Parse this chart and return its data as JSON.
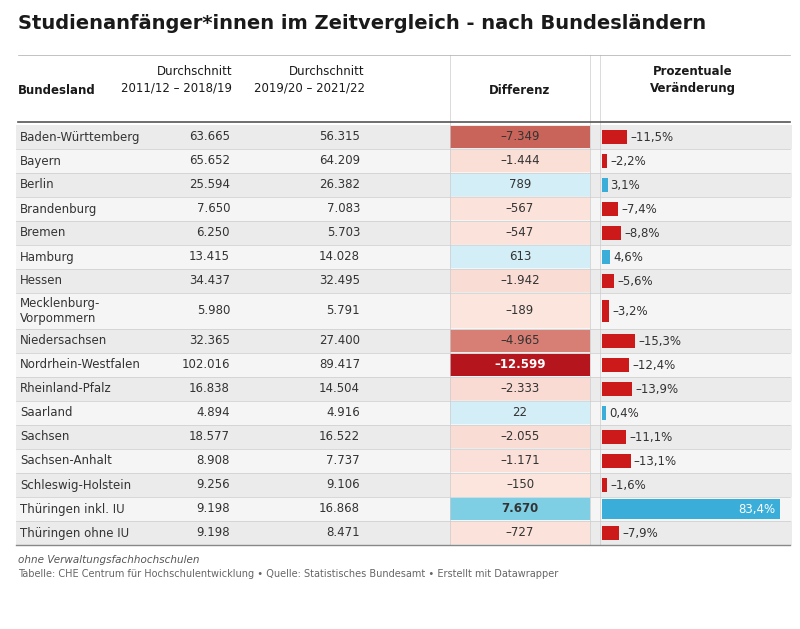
{
  "title": "Studienanfänger*innen im Zeitvergleich - nach Bundesländern",
  "rows": [
    {
      "land": "Baden-Württemberg",
      "avg1": "63.665",
      "avg2": "56.315",
      "diff": -7349,
      "diff_str": "–7.349",
      "pct": -11.5,
      "pct_str": "–11,5%"
    },
    {
      "land": "Bayern",
      "avg1": "65.652",
      "avg2": "64.209",
      "diff": -1444,
      "diff_str": "–1.444",
      "pct": -2.2,
      "pct_str": "–2,2%"
    },
    {
      "land": "Berlin",
      "avg1": "25.594",
      "avg2": "26.382",
      "diff": 789,
      "diff_str": "789",
      "pct": 3.1,
      "pct_str": "3,1%"
    },
    {
      "land": "Brandenburg",
      "avg1": "7.650",
      "avg2": "7.083",
      "diff": -567,
      "diff_str": "–567",
      "pct": -7.4,
      "pct_str": "–7,4%"
    },
    {
      "land": "Bremen",
      "avg1": "6.250",
      "avg2": "5.703",
      "diff": -547,
      "diff_str": "–547",
      "pct": -8.8,
      "pct_str": "–8,8%"
    },
    {
      "land": "Hamburg",
      "avg1": "13.415",
      "avg2": "14.028",
      "diff": 613,
      "diff_str": "613",
      "pct": 4.6,
      "pct_str": "4,6%"
    },
    {
      "land": "Hessen",
      "avg1": "34.437",
      "avg2": "32.495",
      "diff": -1942,
      "diff_str": "–1.942",
      "pct": -5.6,
      "pct_str": "–5,6%"
    },
    {
      "land": "Mecklenburg-\nVorpommern",
      "avg1": "5.980",
      "avg2": "5.791",
      "diff": -189,
      "diff_str": "–189",
      "pct": -3.2,
      "pct_str": "–3,2%"
    },
    {
      "land": "Niedersachsen",
      "avg1": "32.365",
      "avg2": "27.400",
      "diff": -4965,
      "diff_str": "–4.965",
      "pct": -15.3,
      "pct_str": "–15,3%"
    },
    {
      "land": "Nordrhein-Westfalen",
      "avg1": "102.016",
      "avg2": "89.417",
      "diff": -12599,
      "diff_str": "–12.599",
      "pct": -12.4,
      "pct_str": "–12,4%"
    },
    {
      "land": "Rheinland-Pfalz",
      "avg1": "16.838",
      "avg2": "14.504",
      "diff": -2333,
      "diff_str": "–2.333",
      "pct": -13.9,
      "pct_str": "–13,9%"
    },
    {
      "land": "Saarland",
      "avg1": "4.894",
      "avg2": "4.916",
      "diff": 22,
      "diff_str": "22",
      "pct": 0.4,
      "pct_str": "0,4%"
    },
    {
      "land": "Sachsen",
      "avg1": "18.577",
      "avg2": "16.522",
      "diff": -2055,
      "diff_str": "–2.055",
      "pct": -11.1,
      "pct_str": "–11,1%"
    },
    {
      "land": "Sachsen-Anhalt",
      "avg1": "8.908",
      "avg2": "7.737",
      "diff": -1171,
      "diff_str": "–1.171",
      "pct": -13.1,
      "pct_str": "–13,1%"
    },
    {
      "land": "Schleswig-Holstein",
      "avg1": "9.256",
      "avg2": "9.106",
      "diff": -150,
      "diff_str": "–150",
      "pct": -1.6,
      "pct_str": "–1,6%"
    },
    {
      "land": "Thüringen inkl. IU",
      "avg1": "9.198",
      "avg2": "16.868",
      "diff": 7670,
      "diff_str": "7.670",
      "pct": 83.4,
      "pct_str": "83,4%"
    },
    {
      "land": "Thüringen ohne IU",
      "avg1": "9.198",
      "avg2": "8.471",
      "diff": -727,
      "diff_str": "–727",
      "pct": -7.9,
      "pct_str": "–7,9%"
    }
  ],
  "footer1": "ohne Verwaltungsfachhochschulen",
  "footer2": "Tabelle: CHE Centrum für Hochschulentwicklung • Quelle: Statistisches Bundesamt • Erstellt mit Datawrapper",
  "col_header_land": "Bundesland",
  "col_header_avg1": "Durchschnitt\n2011/12 – 2018/19",
  "col_header_avg2": "Durchschnitt\n2019/20 – 2021/22",
  "col_header_diff": "Differenz",
  "col_header_pct": "Prozentuale\nVeränderung"
}
